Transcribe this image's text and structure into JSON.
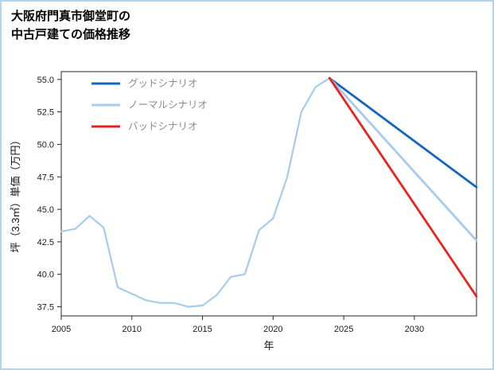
{
  "page": {
    "title_lines": [
      "大阪府門真市御堂町の",
      "中古戸建ての価格推移"
    ]
  },
  "colors": {
    "card_border": "#b3d4ee",
    "spine": "#262626",
    "tick_label": "#1a1a1a",
    "legend_text": "#8c8c8c"
  },
  "chart_data": {
    "type": "line",
    "title": "大阪府門真市御堂町の中古戸建ての価格推移",
    "xlabel": "年",
    "ylabel": "坪（3.3㎡）単価（万円）",
    "xlim": [
      2005,
      2034.4
    ],
    "ylim": [
      36.8,
      55.6
    ],
    "xticks": [
      2005,
      2010,
      2015,
      2020,
      2025,
      2030
    ],
    "yticks": [
      37.5,
      40.0,
      42.5,
      45.0,
      47.5,
      50.0,
      52.5,
      55.0
    ],
    "grid": false,
    "legend_position": "upper-left-inside",
    "series": [
      {
        "name": "history",
        "legend": false,
        "color": "#a6cbeb",
        "width": 2.2,
        "x": [
          2005,
          2006,
          2007,
          2008,
          2009,
          2010,
          2011,
          2012,
          2013,
          2014,
          2015,
          2016,
          2017,
          2018,
          2019,
          2020,
          2021,
          2022,
          2023,
          2024
        ],
        "y": [
          43.3,
          43.5,
          44.5,
          43.6,
          39.0,
          38.5,
          38.0,
          37.8,
          37.8,
          37.5,
          37.6,
          38.4,
          39.8,
          40.0,
          43.4,
          44.3,
          47.5,
          52.5,
          54.4,
          55.1
        ]
      },
      {
        "name": "グッドシナリオ",
        "legend": true,
        "color": "#1565c0",
        "width": 2.8,
        "x": [
          2024,
          2034.4
        ],
        "y": [
          55.1,
          46.7
        ]
      },
      {
        "name": "ノーマルシナリオ",
        "legend": true,
        "color": "#a6cbeb",
        "width": 2.8,
        "x": [
          2024,
          2034.4
        ],
        "y": [
          55.1,
          42.6
        ]
      },
      {
        "name": "バッドシナリオ",
        "legend": true,
        "color": "#e8231e",
        "width": 2.8,
        "x": [
          2024,
          2034.4
        ],
        "y": [
          55.1,
          38.3
        ]
      }
    ]
  }
}
